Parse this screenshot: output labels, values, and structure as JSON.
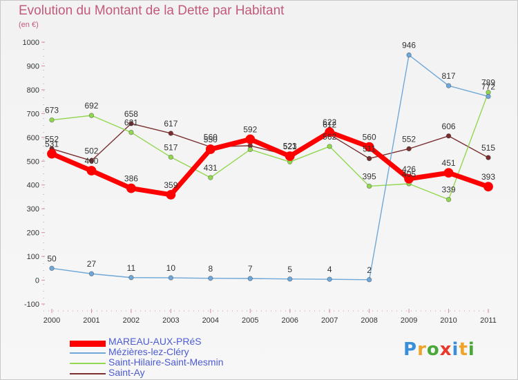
{
  "title": "Evolution du Montant de la Dette par Habitant",
  "unit_label": "(en €)",
  "logo_text": "Proxiti",
  "logo_colors": [
    "#3b8ed8",
    "#f0a32a",
    "#4aa83a",
    "#e8392b",
    "#3b8ed8",
    "#f0a32a",
    "#4aa83a"
  ],
  "chart_data": {
    "type": "line",
    "x": [
      "2000",
      "2001",
      "2002",
      "2003",
      "2004",
      "2005",
      "2006",
      "2007",
      "2008",
      "2009",
      "2010",
      "2011"
    ],
    "ylim": [
      -100,
      1000
    ],
    "yticks": [
      -100,
      0,
      100,
      200,
      300,
      400,
      500,
      600,
      700,
      800,
      900,
      1000
    ],
    "grid": false,
    "legend_position": "bottom-left",
    "series": [
      {
        "name": "Saint-Ay",
        "color": "#7a2e2e",
        "values": [
          552,
          502,
          658,
          617,
          560,
          565,
          523,
          612,
          511,
          552,
          606,
          515
        ],
        "labels": [
          "552",
          "502",
          "658",
          "617",
          "560",
          "",
          "523",
          "612",
          "511",
          "552",
          "606",
          "515"
        ]
      },
      {
        "name": "Saint-Hilaire-Saint-Mesmin",
        "color": "#92d74f",
        "values": [
          673,
          692,
          621,
          517,
          431,
          549,
          497,
          562,
          395,
          405,
          339,
          789
        ],
        "labels": [
          "673",
          "692",
          "621",
          "517",
          "431",
          "",
          "",
          "562",
          "395",
          "405",
          "339",
          "789"
        ]
      },
      {
        "name": "Mézières-lez-Cléry",
        "color": "#6fa8d8",
        "values": [
          50,
          27,
          11,
          10,
          8,
          7,
          5,
          4,
          2,
          946,
          817,
          772
        ],
        "labels": [
          "50",
          "27",
          "11",
          "10",
          "8",
          "7",
          "5",
          "4",
          "2",
          "946",
          "817",
          "772"
        ]
      },
      {
        "name": "MAREAU-AUX-PRéS",
        "color": "#ff0000",
        "values": [
          531,
          460,
          386,
          359,
          550,
          592,
          521,
          622,
          560,
          426,
          451,
          393
        ],
        "labels": [
          "531",
          "460",
          "386",
          "359",
          "550",
          "592",
          "521",
          "622",
          "560",
          "426",
          "451",
          "393"
        ]
      }
    ],
    "legend": [
      "MAREAU-AUX-PRéS",
      "Mézières-lez-Cléry",
      "Saint-Hilaire-Saint-Mesmin",
      "Saint-Ay"
    ]
  }
}
